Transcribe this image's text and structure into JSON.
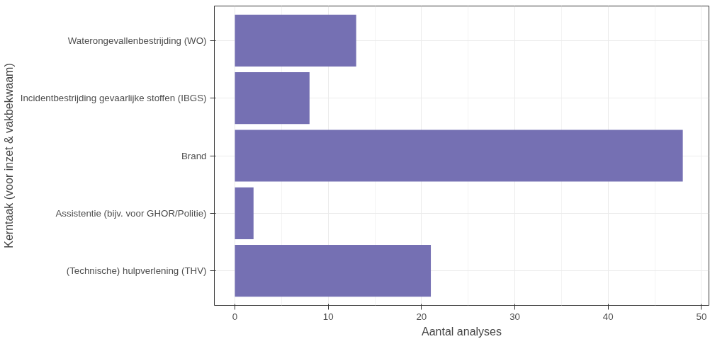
{
  "chart_data": {
    "type": "bar",
    "orientation": "horizontal",
    "xlabel": "Aantal analyses",
    "ylabel": "Kerntaak (voor inzet & vakbekwaam)",
    "categories": [
      "Waterongevallenbestrijding (WO)",
      "Incidentbestrijding gevaarlijke stoffen (IBGS)",
      "Brand",
      "Assistentie (bijv. voor GHOR/Politie)",
      "(Technische) hulpverlening (THV)"
    ],
    "values": [
      13,
      8,
      48,
      2,
      21
    ],
    "color": "#7570b3",
    "xlim": [
      -2.2,
      50.8
    ],
    "xticks": [
      0,
      10,
      20,
      30,
      40,
      50
    ],
    "grid": true
  }
}
